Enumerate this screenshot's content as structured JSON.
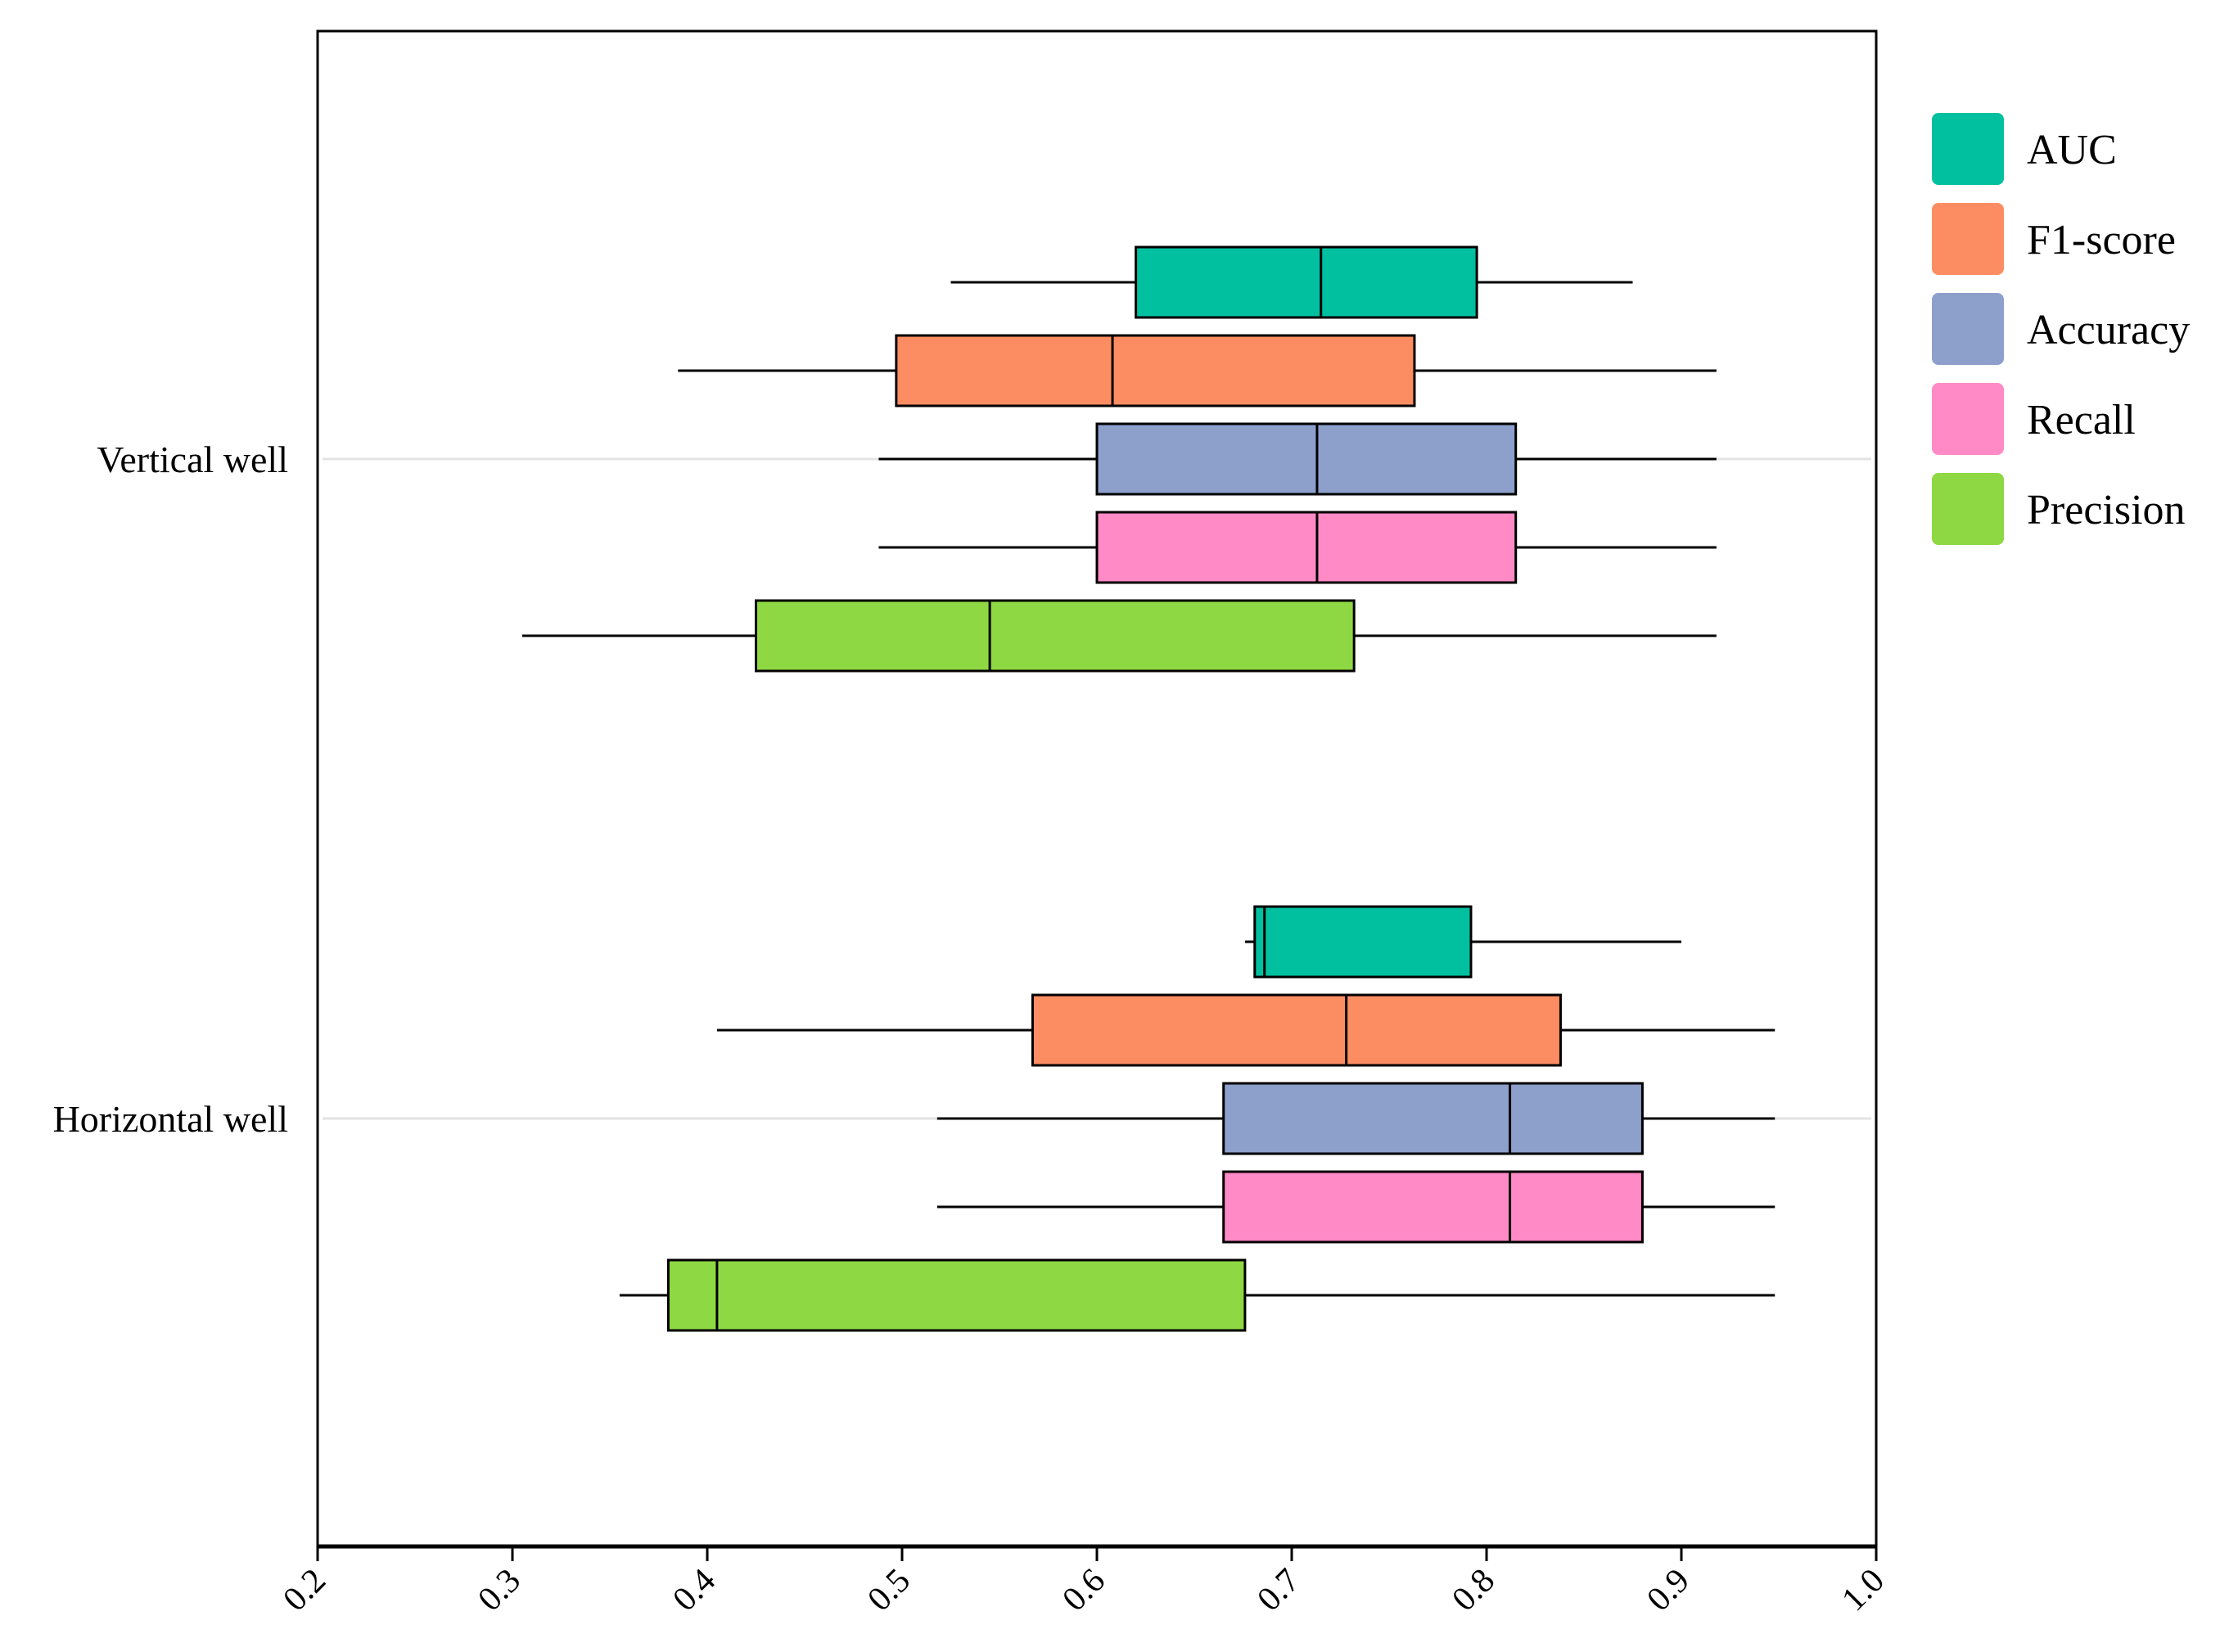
{
  "chart_data": {
    "type": "boxplot",
    "orientation": "horizontal",
    "title": "",
    "xlabel": "",
    "ylabel": "",
    "xlim": [
      0.2,
      1.0
    ],
    "x_ticks": [
      "0.2",
      "0.3",
      "0.4",
      "0.5",
      "0.6",
      "0.7",
      "0.8",
      "0.9",
      "1.0"
    ],
    "groups": [
      {
        "name": "Vertical well",
        "boxes": [
          {
            "series": "AUC",
            "min": 0.525,
            "q1": 0.62,
            "median": 0.715,
            "q3": 0.795,
            "max": 0.875
          },
          {
            "series": "F1-score",
            "min": 0.385,
            "q1": 0.497,
            "median": 0.608,
            "q3": 0.763,
            "max": 0.918
          },
          {
            "series": "Accuracy",
            "min": 0.488,
            "q1": 0.6,
            "median": 0.713,
            "q3": 0.815,
            "max": 0.918
          },
          {
            "series": "Recall",
            "min": 0.488,
            "q1": 0.6,
            "median": 0.713,
            "q3": 0.815,
            "max": 0.918
          },
          {
            "series": "Precision",
            "min": 0.305,
            "q1": 0.425,
            "median": 0.545,
            "q3": 0.732,
            "max": 0.918
          }
        ]
      },
      {
        "name": "Horizontal well",
        "boxes": [
          {
            "series": "AUC",
            "min": 0.676,
            "q1": 0.681,
            "median": 0.686,
            "q3": 0.792,
            "max": 0.9
          },
          {
            "series": "F1-score",
            "min": 0.405,
            "q1": 0.567,
            "median": 0.728,
            "q3": 0.838,
            "max": 0.948
          },
          {
            "series": "Accuracy",
            "min": 0.518,
            "q1": 0.665,
            "median": 0.812,
            "q3": 0.88,
            "max": 0.948
          },
          {
            "series": "Recall",
            "min": 0.518,
            "q1": 0.665,
            "median": 0.812,
            "q3": 0.88,
            "max": 0.948
          },
          {
            "series": "Precision",
            "min": 0.355,
            "q1": 0.38,
            "median": 0.405,
            "q3": 0.676,
            "max": 0.948
          }
        ]
      }
    ],
    "legend": {
      "position": "top-right",
      "entries": [
        {
          "name": "AUC",
          "color": "#00C0A0"
        },
        {
          "name": "F1-score",
          "color": "#FC8D62"
        },
        {
          "name": "Accuracy",
          "color": "#8DA0CB"
        },
        {
          "name": "Recall",
          "color": "#FF8AC6"
        },
        {
          "name": "Precision",
          "color": "#8ED843"
        }
      ]
    }
  }
}
